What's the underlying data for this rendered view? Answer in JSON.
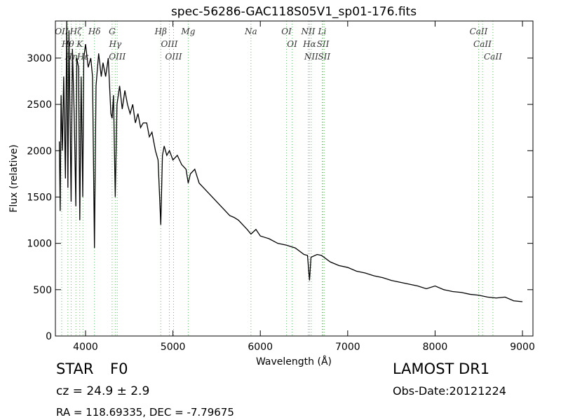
{
  "chart_data": {
    "type": "line",
    "title": "spec-56286-GAC118S05V1_sp01-176.fits",
    "x_label": "Wavelength (Å)",
    "y_label": "Flux (relative)",
    "color": "#000000",
    "line_color": "#5cbf5c",
    "xlim": [
      3655,
      9120
    ],
    "ylim": [
      0,
      3400
    ],
    "xticks": [
      4000,
      5000,
      6000,
      7000,
      8000,
      9000
    ],
    "yticks": [
      0,
      500,
      1000,
      1500,
      2000,
      2500,
      3000
    ],
    "x": [
      3700,
      3710,
      3720,
      3735,
      3750,
      3770,
      3785,
      3798,
      3810,
      3825,
      3835,
      3850,
      3870,
      3889,
      3900,
      3920,
      3934,
      3950,
      3968,
      3980,
      4000,
      4030,
      4060,
      4080,
      4102,
      4120,
      4150,
      4180,
      4200,
      4230,
      4260,
      4290,
      4304,
      4320,
      4340,
      4360,
      4390,
      4420,
      4450,
      4480,
      4510,
      4540,
      4570,
      4600,
      4630,
      4660,
      4700,
      4730,
      4760,
      4800,
      4830,
      4861,
      4880,
      4900,
      4930,
      4960,
      5000,
      5050,
      5100,
      5150,
      5175,
      5200,
      5250,
      5300,
      5350,
      5400,
      5450,
      5500,
      5550,
      5600,
      5650,
      5700,
      5750,
      5800,
      5850,
      5893,
      5950,
      6000,
      6100,
      6200,
      6300,
      6400,
      6500,
      6540,
      6563,
      6580,
      6650,
      6700,
      6800,
      6900,
      7000,
      7100,
      7200,
      7300,
      7400,
      7500,
      7600,
      7700,
      7800,
      7900,
      8000,
      8100,
      8200,
      8300,
      8400,
      8500,
      8600,
      8700,
      8800,
      8900,
      9000
    ],
    "values": [
      2100,
      1350,
      2600,
      2000,
      2800,
      1700,
      3400,
      1600,
      3300,
      2200,
      1450,
      3100,
      2400,
      1400,
      3000,
      2900,
      1250,
      2800,
      1500,
      3000,
      3150,
      2900,
      3000,
      2800,
      950,
      2700,
      3050,
      2800,
      2950,
      2800,
      3000,
      2400,
      2350,
      2600,
      1500,
      2500,
      2700,
      2450,
      2650,
      2500,
      2400,
      2500,
      2300,
      2400,
      2250,
      2300,
      2300,
      2150,
      2200,
      2000,
      1900,
      1200,
      1950,
      2050,
      1950,
      2000,
      1900,
      1950,
      1850,
      1800,
      1650,
      1750,
      1800,
      1650,
      1600,
      1550,
      1500,
      1450,
      1400,
      1350,
      1300,
      1280,
      1250,
      1200,
      1150,
      1100,
      1150,
      1080,
      1050,
      1000,
      980,
      950,
      880,
      870,
      600,
      850,
      880,
      870,
      800,
      760,
      740,
      700,
      680,
      650,
      630,
      600,
      580,
      560,
      540,
      510,
      540,
      500,
      480,
      470,
      450,
      440,
      420,
      410,
      420,
      380,
      370
    ],
    "lines": [
      {
        "name": "OII",
        "x": 3727
      },
      {
        "name": "Hθ",
        "x": 3798
      },
      {
        "name": "Hη",
        "x": 3835
      },
      {
        "name": "Hζ",
        "x": 3889
      },
      {
        "name": "K",
        "x": 3934
      },
      {
        "name": "Hε",
        "x": 3970
      },
      {
        "name": "Hδ",
        "x": 4102
      },
      {
        "name": "G",
        "x": 4304
      },
      {
        "name": "Hγ",
        "x": 4340
      },
      {
        "name": "OIII",
        "x": 4363
      },
      {
        "name": "Hβ",
        "x": 4861
      },
      {
        "name": "OIII",
        "x": 4959
      },
      {
        "name": "OIII",
        "x": 5007
      },
      {
        "name": "Mg",
        "x": 5175
      },
      {
        "name": "Na",
        "x": 5893
      },
      {
        "name": "OI",
        "x": 6300
      },
      {
        "name": "OI",
        "x": 6364
      },
      {
        "name": "NII",
        "x": 6548
      },
      {
        "name": "Hα",
        "x": 6563
      },
      {
        "name": "NII",
        "x": 6583
      },
      {
        "name": "Li",
        "x": 6708
      },
      {
        "name": "SII",
        "x": 6717
      },
      {
        "name": "SII",
        "x": 6731
      },
      {
        "name": "CaII",
        "x": 8498
      },
      {
        "name": "CaII",
        "x": 8542
      },
      {
        "name": "CaII",
        "x": 8662
      }
    ]
  },
  "footer": {
    "class": "STAR",
    "subclass": "F0",
    "survey": "LAMOST DR1",
    "redshift": "cz = 24.9 ± 2.9",
    "obs_date": "Obs-Date:20121224",
    "position": "RA = 118.69335, DEC = -7.79675"
  }
}
